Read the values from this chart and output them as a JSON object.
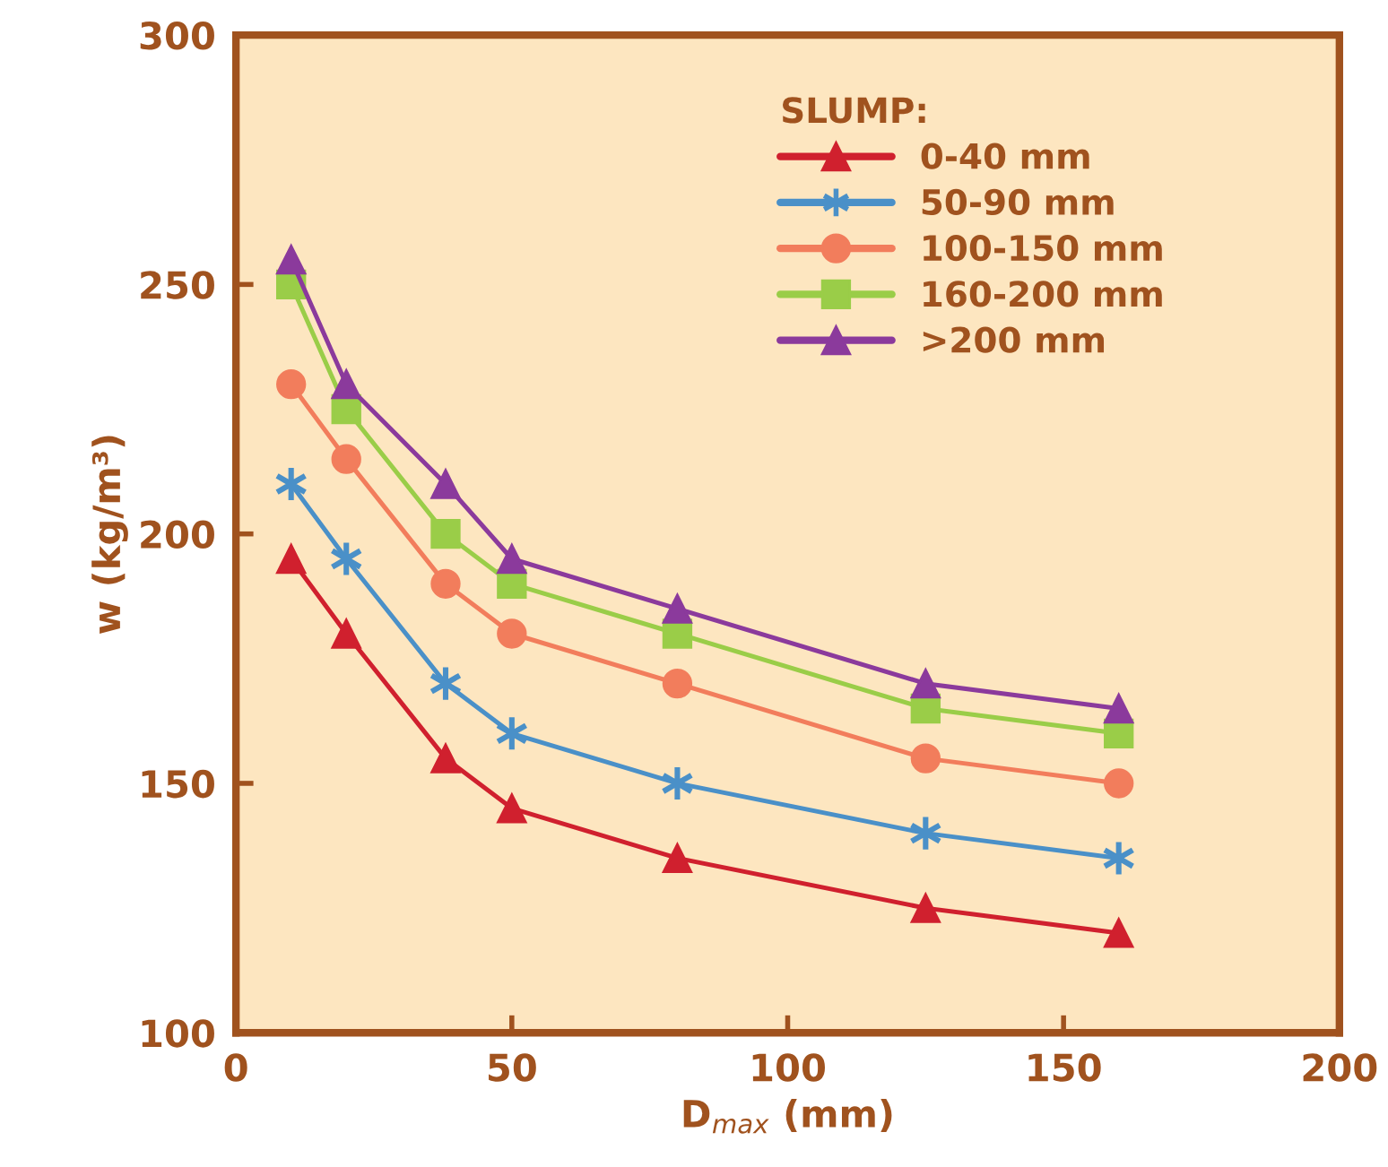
{
  "chart_data": {
    "type": "line",
    "xlabel": "D$_{max}$ (mm)",
    "ylabel": "w (kg/m³)",
    "legend_title": "SLUMP:",
    "legend": "top right",
    "x": [
      10,
      20,
      38,
      50,
      80,
      125,
      160
    ],
    "xlim": [
      0,
      200
    ],
    "xticks": [
      0,
      50,
      100,
      150,
      200
    ],
    "ylim": [
      100,
      300
    ],
    "yticks": [
      100,
      150,
      200,
      250,
      300
    ],
    "grid": false,
    "series": [
      {
        "name": "0-40 mm",
        "color": "#d0202e",
        "marker": "triangle",
        "values": [
          195,
          180,
          155,
          145,
          135,
          125,
          120
        ]
      },
      {
        "name": "50-90 mm",
        "color": "#4a90c8",
        "marker": "cross",
        "values": [
          210,
          195,
          170,
          160,
          150,
          140,
          135
        ]
      },
      {
        "name": "100-150 mm",
        "color": "#f27d5c",
        "marker": "circle",
        "values": [
          230,
          215,
          190,
          180,
          170,
          155,
          150
        ]
      },
      {
        "name": "160-200 mm",
        "color": "#9acd48",
        "marker": "square",
        "values": [
          250,
          225,
          200,
          190,
          180,
          165,
          160
        ]
      },
      {
        "name": ">200 mm",
        "color": "#8b3a9c",
        "marker": "triangle",
        "values": [
          255,
          230,
          210,
          195,
          185,
          170,
          165
        ]
      }
    ]
  }
}
